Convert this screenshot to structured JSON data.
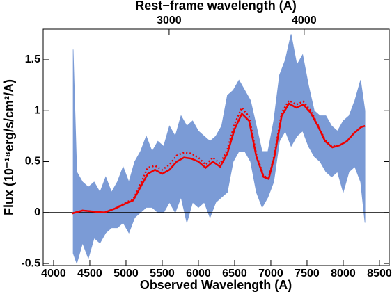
{
  "chart_data": {
    "type": "spectrum",
    "xlabel": "Observed Wavelength (A)",
    "ylabel": "Flux (10⁻¹⁸erg/s/cm²/A)",
    "top_xlabel": "Rest−frame wavelength (A)",
    "xlim": [
      3856,
      8635
    ],
    "ylim": [
      -0.52,
      1.8
    ],
    "xticks": [
      4000,
      4500,
      5000,
      5500,
      6000,
      6500,
      7000,
      7500,
      8000,
      8500
    ],
    "yticks": [
      -0.5,
      0,
      0.5,
      1,
      1.5
    ],
    "top_xlim": [
      2067,
      4630
    ],
    "top_xticks": [
      3000,
      4000
    ],
    "zero_line": true,
    "band": {
      "color": "#7b9bd6",
      "x": [
        4270,
        4320,
        4400,
        4480,
        4560,
        4640,
        4720,
        4800,
        4880,
        4960,
        5040,
        5120,
        5200,
        5280,
        5360,
        5440,
        5520,
        5600,
        5680,
        5760,
        5840,
        5920,
        6000,
        6080,
        6160,
        6240,
        6320,
        6400,
        6480,
        6560,
        6640,
        6720,
        6800,
        6880,
        6960,
        7040,
        7120,
        7200,
        7280,
        7360,
        7440,
        7520,
        7600,
        7680,
        7760,
        7840,
        7920,
        8000,
        8080,
        8160,
        8240,
        8300
      ],
      "lower": [
        -0.4,
        -0.5,
        -0.3,
        -0.45,
        -0.25,
        -0.3,
        -0.2,
        -0.15,
        -0.15,
        -0.1,
        -0.2,
        -0.05,
        0.0,
        0.05,
        0.05,
        0.0,
        0.0,
        0.1,
        0.0,
        0.15,
        -0.1,
        0.1,
        0.05,
        0.1,
        -0.05,
        0.1,
        0.15,
        0.2,
        0.5,
        0.6,
        0.6,
        0.5,
        0.2,
        0.05,
        0.15,
        0.3,
        0.7,
        0.8,
        0.65,
        0.75,
        0.8,
        0.65,
        0.55,
        0.5,
        0.4,
        0.35,
        0.4,
        0.2,
        0.4,
        0.45,
        0.3,
        -0.1
      ],
      "upper": [
        1.6,
        0.4,
        0.3,
        0.25,
        0.3,
        0.2,
        0.35,
        0.2,
        0.3,
        0.45,
        0.3,
        0.5,
        0.6,
        0.75,
        0.6,
        0.7,
        0.65,
        0.85,
        0.75,
        0.95,
        0.85,
        0.9,
        0.8,
        0.75,
        0.7,
        0.75,
        0.85,
        1.15,
        1.2,
        1.3,
        1.2,
        1.1,
        0.85,
        0.6,
        0.6,
        0.9,
        1.35,
        1.5,
        1.75,
        1.45,
        1.55,
        1.25,
        1.0,
        0.95,
        0.95,
        0.85,
        0.8,
        0.9,
        0.95,
        1.1,
        1.3,
        1.0
      ]
    },
    "x": [
      4250,
      4400,
      4550,
      4700,
      4850,
      5000,
      5100,
      5200,
      5300,
      5400,
      5500,
      5600,
      5700,
      5800,
      5900,
      6000,
      6100,
      6200,
      6300,
      6400,
      6500,
      6600,
      6700,
      6800,
      6900,
      6970,
      7050,
      7150,
      7250,
      7350,
      7450,
      7550,
      7650,
      7750,
      7850,
      7950,
      8050,
      8150,
      8250,
      8300
    ],
    "series": [
      {
        "style": "solid",
        "color": "#ee0000",
        "values": [
          -0.01,
          0.02,
          0.01,
          0.0,
          0.04,
          0.09,
          0.12,
          0.25,
          0.38,
          0.42,
          0.38,
          0.42,
          0.5,
          0.54,
          0.53,
          0.5,
          0.44,
          0.5,
          0.45,
          0.58,
          0.82,
          0.97,
          0.9,
          0.55,
          0.35,
          0.33,
          0.55,
          0.95,
          1.07,
          1.03,
          1.06,
          0.98,
          0.85,
          0.7,
          0.64,
          0.66,
          0.7,
          0.78,
          0.84,
          0.85
        ]
      },
      {
        "style": "dotted",
        "color": "#ee0000",
        "values": [
          -0.01,
          0.02,
          0.01,
          0.0,
          0.04,
          0.1,
          0.13,
          0.28,
          0.44,
          0.46,
          0.42,
          0.47,
          0.56,
          0.59,
          0.58,
          0.54,
          0.47,
          0.54,
          0.48,
          0.62,
          0.87,
          1.03,
          0.94,
          0.57,
          0.36,
          0.34,
          0.57,
          0.98,
          1.1,
          1.06,
          1.09,
          1.0,
          0.86,
          0.71,
          0.65,
          0.66,
          0.7,
          0.78,
          0.84,
          0.85
        ]
      }
    ]
  }
}
